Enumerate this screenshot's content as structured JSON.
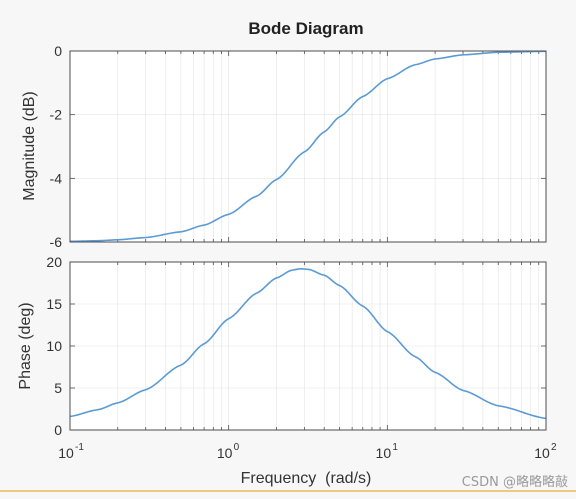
{
  "figure": {
    "title": "Bode Diagram",
    "watermark": "CSDN @略略略敲"
  },
  "colors": {
    "curve": "#5b9bd5",
    "axes": "#4d4d4d",
    "underline": "#f0c87a"
  },
  "chart_data": [
    {
      "type": "line",
      "name": "magnitude",
      "title": "Bode Diagram",
      "xlabel": "",
      "ylabel": "Magnitude (dB)",
      "xscale": "log",
      "xlim": [
        0.1,
        100
      ],
      "ylim": [
        -6,
        0
      ],
      "yticks": [
        0,
        -2,
        -4,
        -6
      ],
      "ytick_labels": [
        "0",
        "-2",
        "-4",
        "-6"
      ],
      "x": [
        0.1,
        0.15,
        0.2,
        0.3,
        0.5,
        0.7,
        1,
        1.5,
        2,
        3,
        4,
        5,
        7,
        10,
        15,
        20,
        30,
        50,
        100
      ],
      "series": [
        {
          "values": [
            -5.98,
            -5.96,
            -5.93,
            -5.86,
            -5.68,
            -5.47,
            -5.13,
            -4.56,
            -4.04,
            -3.17,
            -2.54,
            -2.07,
            -1.43,
            -0.87,
            -0.43,
            -0.25,
            -0.12,
            -0.04,
            -0.01
          ]
        }
      ]
    },
    {
      "type": "line",
      "name": "phase",
      "xlabel": "Frequency  (rad/s)",
      "ylabel": "Phase (deg)",
      "xscale": "log",
      "xlim": [
        0.1,
        100
      ],
      "ylim": [
        0,
        20
      ],
      "yticks": [
        0,
        5,
        10,
        15,
        20
      ],
      "ytick_labels": [
        "0",
        "5",
        "10",
        "15",
        "20"
      ],
      "xticks": [
        0.1,
        1,
        10,
        100
      ],
      "xtick_labels": [
        {
          "base": "10",
          "exp": "-1"
        },
        {
          "base": "10",
          "exp": "0"
        },
        {
          "base": "10",
          "exp": "1"
        },
        {
          "base": "10",
          "exp": "2"
        }
      ],
      "x": [
        0.1,
        0.15,
        0.2,
        0.3,
        0.5,
        0.7,
        1,
        1.5,
        2,
        2.5,
        2.83,
        3.2,
        4,
        5,
        7,
        10,
        15,
        20,
        30,
        50,
        100
      ],
      "series": [
        {
          "values": [
            1.62,
            2.42,
            3.23,
            4.79,
            7.72,
            10.26,
            13.25,
            16.3,
            18.1,
            19.03,
            19.2,
            19.12,
            18.43,
            17.2,
            14.76,
            11.72,
            8.72,
            6.86,
            4.71,
            2.88,
            1.38
          ]
        }
      ]
    }
  ]
}
